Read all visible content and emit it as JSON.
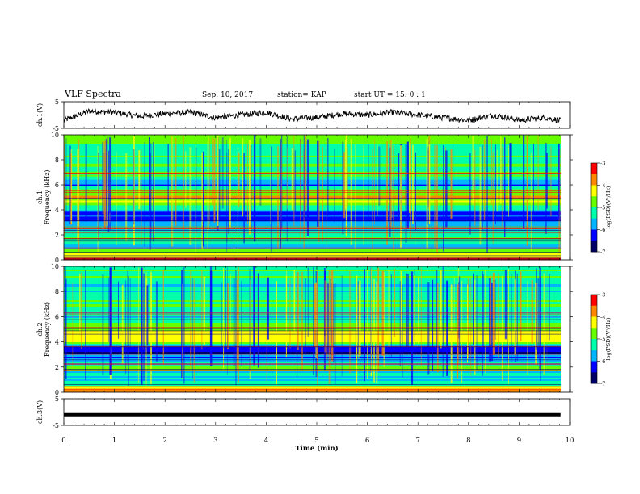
{
  "header": {
    "title": "VLF Spectra",
    "date": "Sep. 10, 2017",
    "station": "station= KAP",
    "start": "start  UT =   15: 0  : 1"
  },
  "chart_data": [
    {
      "type": "line",
      "name": "ch1-voltage",
      "ylabel": "ch.1(V)",
      "ylim": [
        -5,
        5
      ],
      "y_ticks": [
        "5",
        "-5"
      ],
      "x_range_min": [
        0,
        9.82
      ],
      "x": [
        0,
        0.5,
        1,
        1.5,
        2,
        2.5,
        3,
        3.5,
        4,
        4.5,
        5,
        5.5,
        6,
        6.5,
        7,
        7.5,
        8,
        8.5,
        9,
        9.5,
        9.8
      ],
      "values": [
        -2,
        1.5,
        1,
        -0.5,
        0.5,
        1,
        -1,
        0,
        1,
        -1.5,
        -1,
        0.5,
        0,
        1,
        0,
        -1,
        -2,
        0,
        -2,
        -1,
        -2
      ]
    },
    {
      "type": "heatmap",
      "name": "ch1-spectrogram",
      "ylabel": "ch.1\nFrequency (kHz)",
      "ylim": [
        0,
        10
      ],
      "y_ticks": [
        "0",
        "2",
        "4",
        "6",
        "8",
        "10"
      ],
      "colorbar": {
        "label": "log(PSD)(V²/Hz)",
        "range": [
          -7,
          -3
        ],
        "ticks": [
          "-3",
          "-4",
          "-5",
          "-6",
          "-7"
        ]
      },
      "band_profile_freq_khz": [
        0,
        1,
        2,
        3,
        3.5,
        4,
        5,
        6,
        7,
        8,
        9,
        10
      ],
      "band_profile_log_psd": [
        -3.5,
        -5.5,
        -5,
        -6,
        -6.2,
        -5.5,
        -4,
        -5.8,
        -5,
        -5.2,
        -5.2,
        -5
      ]
    },
    {
      "type": "heatmap",
      "name": "ch2-spectrogram",
      "ylabel": "ch.2\nFrequency (kHz)",
      "ylim": [
        0,
        10
      ],
      "y_ticks": [
        "0",
        "2",
        "4",
        "6",
        "8",
        "10"
      ],
      "colorbar": {
        "label": "log(PSD)(V²/Hz)",
        "range": [
          -7,
          -3
        ],
        "ticks": [
          "-3",
          "-4",
          "-5",
          "-6",
          "-7"
        ]
      },
      "band_profile_freq_khz": [
        0,
        1,
        2,
        3,
        3.5,
        4,
        5,
        6,
        7,
        8,
        9,
        10
      ],
      "band_profile_log_psd": [
        -3.5,
        -5.8,
        -5,
        -6.2,
        -6.5,
        -4.2,
        -4.5,
        -5.5,
        -5,
        -5.3,
        -5.3,
        -5
      ]
    },
    {
      "type": "line",
      "name": "ch3-voltage",
      "ylabel": "ch.3(V)",
      "ylim": [
        -5,
        5
      ],
      "y_ticks": [
        "5",
        "-5"
      ],
      "x_range_min": [
        0,
        9.82
      ],
      "constant_value": -1
    }
  ],
  "xaxis": {
    "label": "Time (min)",
    "ticks": [
      "0",
      "1",
      "2",
      "3",
      "4",
      "5",
      "6",
      "7",
      "8",
      "9",
      "10"
    ],
    "range": [
      0,
      10
    ]
  },
  "colors": {
    "trace": "#000000",
    "colormap": [
      "#000066",
      "#0000ff",
      "#00b4ff",
      "#00ffaa",
      "#66ff00",
      "#ffff00",
      "#ff8800",
      "#ff0000"
    ]
  }
}
